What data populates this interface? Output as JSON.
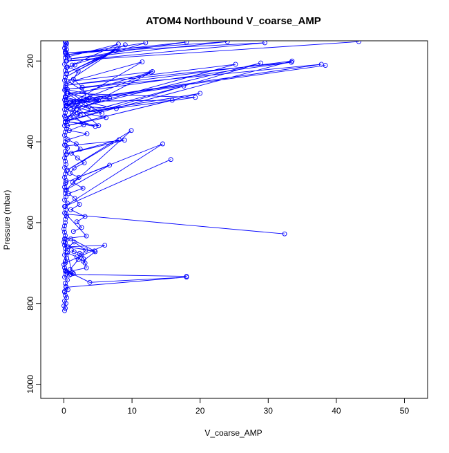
{
  "chart_data": {
    "type": "line",
    "title": "ATOM4 Northbound V_coarse_AMP",
    "xlabel": "V_coarse_AMP",
    "ylabel": "Pressure (mbar)",
    "xlim": [
      -3.4,
      53.4
    ],
    "ylim": [
      1035,
      150
    ],
    "y_reversed": true,
    "grid": false,
    "legend": "none",
    "point_marker": "open-circle",
    "color": "#0000ff",
    "x_ticks": [
      0,
      10,
      20,
      30,
      40,
      50
    ],
    "x_tick_labels": [
      "0",
      "10",
      "20",
      "30",
      "40",
      "50"
    ],
    "y_ticks": [
      200,
      400,
      600,
      800,
      1000
    ],
    "y_tick_labels": [
      "200",
      "400",
      "600",
      "800",
      "1000"
    ],
    "series": [
      {
        "values_note": "",
        "x": [
          0.1,
          0.2,
          0.0,
          0.3,
          0.1,
          0.4,
          0.2,
          0.1,
          0.6,
          0.3,
          0.2,
          0.5,
          0.1,
          0.3,
          0.2,
          0.1,
          0.0,
          0.2,
          0.4,
          0.1,
          0.3,
          0.2,
          0.1,
          0.0,
          0.1,
          0.2,
          0.1,
          0.0,
          0.1,
          0.2
        ],
        "y": [
          818,
          812,
          806,
          800,
          794,
          786,
          780,
          772,
          766,
          758,
          750,
          742,
          735,
          728,
          720,
          712,
          704,
          696,
          688,
          680,
          672,
          664,
          656,
          648,
          640,
          632,
          624,
          616,
          608,
          600
        ],
        "name": ""
      },
      {
        "name": "",
        "x": [
          0.2,
          0.4,
          0.1,
          0.3,
          0.2,
          0.5,
          0.1,
          0.3,
          0.2,
          0.4,
          0.1,
          0.2,
          0.3,
          0.1,
          0.2,
          0.4,
          0.1,
          0.3,
          0.2,
          0.1,
          0.3,
          0.2,
          0.5,
          0.1,
          0.2,
          0.3,
          0.1,
          0.2,
          0.4,
          0.1,
          0.2,
          0.3,
          0.1,
          0.2,
          0.1,
          0.3,
          0.2,
          0.1,
          0.2,
          0.4,
          0.1,
          0.2,
          0.3,
          0.1,
          0.2
        ],
        "y": [
          592,
          584,
          576,
          568,
          560,
          552,
          544,
          536,
          528,
          520,
          512,
          504,
          496,
          488,
          480,
          472,
          464,
          456,
          448,
          440,
          432,
          424,
          416,
          408,
          400,
          392,
          384,
          376,
          368,
          360,
          352,
          344,
          336,
          328,
          320,
          312,
          304,
          296,
          288,
          280,
          272,
          264,
          256,
          248,
          240
        ]
      },
      {
        "name": "",
        "x": [
          0.3,
          0.2,
          0.4,
          0.1,
          0.3,
          0.2,
          0.5,
          0.3,
          0.2,
          0.4,
          0.1,
          0.3,
          0.2,
          0.4,
          0.3,
          0.2
        ],
        "y": [
          232,
          224,
          216,
          208,
          200,
          192,
          186,
          180,
          176,
          172,
          168,
          164,
          160,
          157,
          154,
          152
        ]
      },
      {
        "name": "",
        "x": [
          18.0,
          1.0,
          0.5,
          0.2,
          3.8,
          18.0,
          0.3,
          0.1
        ],
        "y": [
          733,
          728,
          722,
          718,
          748,
          735,
          760,
          770
        ]
      },
      {
        "name": "",
        "x": [
          32.4,
          0.3,
          3.3,
          0.2,
          0.2,
          6.0,
          0.5,
          4.5,
          1.0,
          0.2
        ],
        "y": [
          628,
          579,
          633,
          640,
          700,
          656,
          660,
          670,
          640,
          650
        ]
      },
      {
        "name": "",
        "x": [
          1.1,
          1.5,
          2.3,
          2.6,
          2.9,
          3.1,
          3.3,
          0.4,
          0.8,
          1.2,
          0.5,
          1.9,
          2.8,
          4.6,
          0.7,
          1.5,
          3.2,
          2.1,
          0.9,
          1.4
        ],
        "y": [
          668,
          672,
          676,
          680,
          690,
          700,
          712,
          722,
          730,
          724,
          675,
          685,
          695,
          672,
          660,
          648,
          668,
          692,
          716,
          726
        ]
      },
      {
        "name": "",
        "x": [
          15.7,
          0.1,
          14.5,
          0.3,
          6.7,
          0.2,
          9.9,
          0.5,
          8.1,
          0.4,
          8.9,
          0.3
        ],
        "y": [
          444,
          560,
          405,
          500,
          458,
          520,
          372,
          470,
          395,
          430,
          396,
          410
        ]
      },
      {
        "name": "",
        "x": [
          38.4,
          0.3,
          37.8,
          0.5,
          33.5,
          0.2,
          28.9,
          1.0,
          25.2,
          0.3,
          33.4,
          0.6,
          19.3,
          2.0,
          20.0,
          0.5,
          15.9,
          1.5,
          17.6,
          0.2,
          12.8,
          0.4,
          11.5,
          1.2,
          13.0,
          0.3
        ],
        "y": [
          211,
          300,
          208,
          270,
          200,
          350,
          205,
          320,
          208,
          260,
          203,
          280,
          290,
          330,
          280,
          360,
          297,
          300,
          262,
          340,
          228,
          310,
          202,
          250,
          226,
          290
        ]
      },
      {
        "name": "",
        "x": [
          9.0,
          0.4,
          7.5,
          0.2,
          7.8,
          0.6,
          4.8,
          0.3,
          5.1,
          0.5,
          4.0,
          1.0,
          6.7,
          0.2,
          5.6,
          0.4,
          7.7,
          0.2,
          5.1,
          0.5,
          4.6,
          1.0,
          3.7,
          0.3,
          2.4,
          0.2,
          2.9,
          0.4,
          6.2,
          0.5
        ],
        "y": [
          160,
          230,
          175,
          240,
          170,
          250,
          296,
          310,
          297,
          280,
          320,
          300,
          292,
          270,
          330,
          310,
          318,
          290,
          360,
          350,
          362,
          340,
          292,
          300,
          334,
          350,
          294,
          320,
          340,
          360
        ]
      },
      {
        "name": "",
        "x": [
          1.6,
          0.5,
          2.1,
          1.4,
          2.7,
          3.4,
          2.0,
          1.2,
          2.9,
          0.8,
          3.4,
          0.6,
          1.8,
          2.4,
          1.1,
          2.0,
          3.0,
          1.5,
          0.9,
          2.2,
          1.3,
          2.8,
          0.7,
          1.6,
          2.3,
          1.0,
          3.1,
          1.9,
          2.6,
          1.4
        ],
        "y": [
          210,
          215,
          225,
          245,
          265,
          295,
          305,
          330,
          358,
          372,
          380,
          395,
          405,
          418,
          428,
          440,
          452,
          465,
          478,
          488,
          500,
          515,
          528,
          540,
          555,
          568,
          585,
          598,
          612,
          622
        ]
      },
      {
        "name": "",
        "x": [
          43.3,
          0.4,
          29.5,
          0.2,
          24.0,
          0.8,
          18.0,
          0.3,
          12.0,
          1.2,
          8.0,
          0.5
        ],
        "y": [
          152,
          200,
          155,
          180,
          152,
          195,
          153,
          185,
          155,
          210,
          158,
          190
        ]
      }
    ]
  }
}
